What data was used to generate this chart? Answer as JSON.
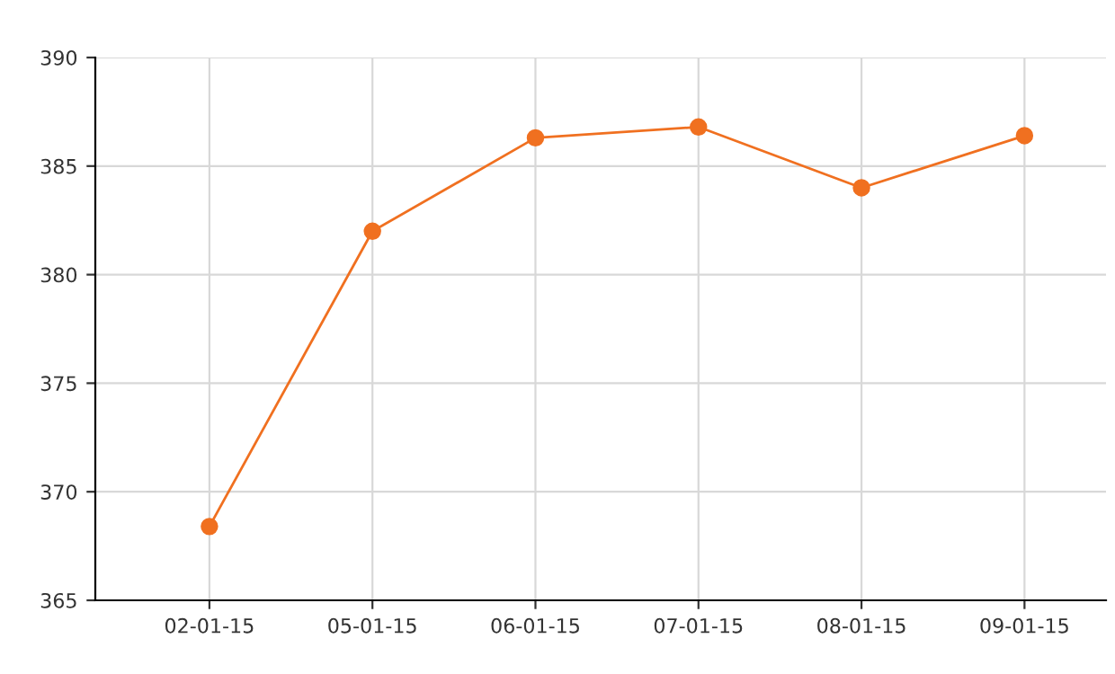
{
  "chart_data": {
    "type": "line",
    "categories": [
      "02-01-15",
      "05-01-15",
      "06-01-15",
      "07-01-15",
      "08-01-15",
      "09-01-15"
    ],
    "series": [
      {
        "color": "#f07020",
        "values": [
          368.4,
          382.0,
          386.3,
          386.8,
          384.0,
          386.4
        ]
      }
    ],
    "ylim": [
      365,
      390
    ],
    "yticks": [
      365,
      370,
      375,
      380,
      385,
      390
    ],
    "grid": true,
    "marker": "circle",
    "line_style": "solid"
  }
}
